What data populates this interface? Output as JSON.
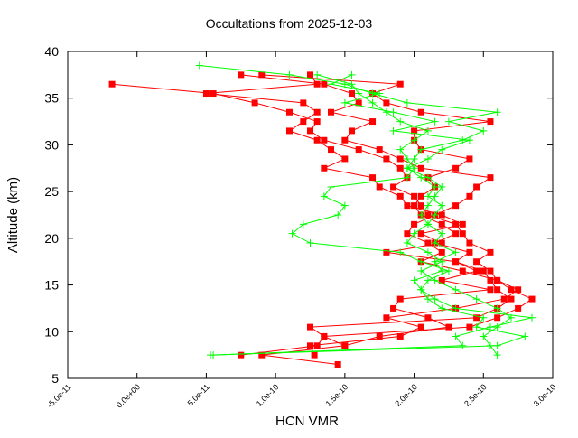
{
  "chart_data": {
    "type": "line",
    "title": "Occultations from 2025-12-03",
    "xlabel": "HCN VMR",
    "ylabel": "Altitude (km)",
    "xlim": [
      -5e-11,
      3e-10
    ],
    "ylim": [
      5,
      40
    ],
    "xticks": [
      -5e-11,
      0,
      5e-11,
      1e-10,
      1.5e-10,
      2e-10,
      2.5e-10,
      3e-10
    ],
    "xtick_labels": [
      "-5.0e-11",
      "0.0e+00",
      "5.0e-11",
      "1.0e-10",
      "1.5e-10",
      "2.0e-10",
      "2.5e-10",
      "3.0e-10"
    ],
    "yticks": [
      5,
      10,
      15,
      20,
      25,
      30,
      35,
      40
    ],
    "ytick_labels": [
      "5",
      "10",
      "15",
      "20",
      "25",
      "30",
      "35",
      "40"
    ],
    "grid": false,
    "colors": {
      "red_series": "#ff0000",
      "green_series": "#00ff00"
    },
    "series": [
      {
        "marker": "square",
        "color": "#ff0000",
        "profiles": [
          [
            [
              -1.8e-11,
              36.5
            ],
            [
              5.5e-11,
              35.5
            ],
            [
              8.5e-11,
              34.5
            ],
            [
              1.1e-10,
              33.5
            ],
            [
              1.3e-10,
              32.5
            ],
            [
              1.25e-10,
              31.5
            ],
            [
              1.35e-10,
              30.5
            ],
            [
              1.6e-10,
              29.5
            ],
            [
              1.8e-10,
              28.5
            ],
            [
              1.9e-10,
              27.5
            ],
            [
              1.95e-10,
              26.5
            ],
            [
              1.85e-10,
              25.5
            ],
            [
              2e-10,
              24.5
            ],
            [
              2.05e-10,
              23.5
            ],
            [
              2.1e-10,
              22.5
            ],
            [
              2.3e-10,
              21.5
            ],
            [
              2.35e-10,
              20.5
            ],
            [
              2.4e-10,
              19.5
            ],
            [
              2.55e-10,
              18.5
            ],
            [
              2.45e-10,
              17.5
            ],
            [
              2.55e-10,
              16.5
            ],
            [
              2.6e-10,
              15.5
            ],
            [
              2.7e-10,
              14.5
            ],
            [
              2.85e-10,
              13.5
            ],
            [
              2.75e-10,
              12.5
            ],
            [
              2.6e-10,
              11.5
            ],
            [
              2.4e-10,
              10.5
            ],
            [
              1.35e-10,
              9.5
            ],
            [
              1.3e-10,
              8.5
            ],
            [
              7.5e-11,
              7.5
            ]
          ],
          [
            [
              1.25e-10,
              37.5
            ],
            [
              1.3e-10,
              36.5
            ],
            [
              5e-11,
              35.5
            ],
            [
              1.2e-10,
              34.5
            ],
            [
              1.3e-10,
              33.5
            ],
            [
              1.2e-10,
              32.5
            ],
            [
              1.1e-10,
              31.5
            ],
            [
              1.3e-10,
              30.5
            ],
            [
              1.4e-10,
              29.5
            ],
            [
              1.5e-10,
              28.5
            ],
            [
              1.35e-10,
              27.5
            ],
            [
              1.7e-10,
              26.5
            ],
            [
              1.75e-10,
              25.5
            ],
            [
              1.9e-10,
              24.5
            ],
            [
              1.95e-10,
              23.5
            ],
            [
              2.2e-10,
              22.5
            ],
            [
              2.35e-10,
              21.5
            ],
            [
              2.05e-10,
              20.5
            ],
            [
              2.2e-10,
              19.5
            ],
            [
              1.8e-10,
              18.5
            ],
            [
              2.3e-10,
              17.5
            ],
            [
              2.5e-10,
              16.5
            ],
            [
              2.55e-10,
              15.5
            ],
            [
              2.6e-10,
              14.5
            ],
            [
              2.7e-10,
              13.5
            ],
            [
              2.6e-10,
              12.5
            ],
            [
              2.45e-10,
              11.5
            ],
            [
              1.25e-10,
              10.5
            ],
            [
              1.35e-10,
              9.5
            ],
            [
              1.5e-10,
              8.5
            ],
            [
              9e-11,
              7.5
            ],
            [
              1.45e-10,
              6.5
            ]
          ],
          [
            [
              7.5e-11,
              37.5
            ],
            [
              1.35e-10,
              36.5
            ],
            [
              1.55e-10,
              35.5
            ],
            [
              1.6e-10,
              34.5
            ],
            [
              1.4e-10,
              33.5
            ],
            [
              1.7e-10,
              32.5
            ],
            [
              1.55e-10,
              31.5
            ],
            [
              1.5e-10,
              30.5
            ],
            [
              1.75e-10,
              29.5
            ],
            [
              1.9e-10,
              28.5
            ],
            [
              2.05e-10,
              27.5
            ],
            [
              2.55e-10,
              26.5
            ],
            [
              2.45e-10,
              25.5
            ],
            [
              2.4e-10,
              24.5
            ],
            [
              2.3e-10,
              23.5
            ],
            [
              2.15e-10,
              22.5
            ],
            [
              2e-10,
              21.5
            ],
            [
              1.95e-10,
              20.5
            ],
            [
              2.1e-10,
              19.5
            ],
            [
              2.2e-10,
              18.5
            ],
            [
              2.05e-10,
              17.5
            ],
            [
              2.35e-10,
              16.5
            ],
            [
              2.6e-10,
              15.5
            ],
            [
              2.75e-10,
              14.5
            ],
            [
              2.65e-10,
              13.5
            ],
            [
              2.3e-10,
              12.5
            ],
            [
              1.8e-10,
              11.5
            ],
            [
              2.05e-10,
              10.5
            ],
            [
              1.9e-10,
              9.5
            ],
            [
              1.25e-10,
              8.5
            ],
            [
              1.28e-10,
              7.5
            ]
          ],
          [
            [
              9e-11,
              37.5
            ],
            [
              1.9e-10,
              36.5
            ],
            [
              1.7e-10,
              35.5
            ],
            [
              1.8e-10,
              34.5
            ],
            [
              2.05e-10,
              33.5
            ],
            [
              2.55e-10,
              32.5
            ],
            [
              2e-10,
              31.5
            ],
            [
              2e-10,
              30.5
            ],
            [
              2.05e-10,
              29.5
            ],
            [
              2.4e-10,
              28.5
            ],
            [
              2.3e-10,
              27.5
            ],
            [
              2.1e-10,
              26.5
            ],
            [
              2.15e-10,
              25.5
            ],
            [
              2.05e-10,
              24.5
            ],
            [
              2e-10,
              23.5
            ],
            [
              2.05e-10,
              22.5
            ],
            [
              2.2e-10,
              21.5
            ],
            [
              2.3e-10,
              20.5
            ],
            [
              2.15e-10,
              19.5
            ],
            [
              2.4e-10,
              18.5
            ],
            [
              2.3e-10,
              17.5
            ],
            [
              2.45e-10,
              16.5
            ],
            [
              2.2e-10,
              15.5
            ],
            [
              2.55e-10,
              14.5
            ],
            [
              1.9e-10,
              13.5
            ],
            [
              1.85e-10,
              12.5
            ],
            [
              2.1e-10,
              11.5
            ],
            [
              2.25e-10,
              10.5
            ],
            [
              1.75e-10,
              9.5
            ],
            [
              1.5e-10,
              8.5
            ]
          ]
        ]
      },
      {
        "marker": "plus",
        "color": "#00ff00",
        "profiles": [
          [
            [
              4.5e-11,
              38.5
            ],
            [
              1.1e-10,
              37.5
            ],
            [
              1.5e-10,
              36.5
            ],
            [
              1.7e-10,
              35.5
            ],
            [
              1.95e-10,
              34.5
            ],
            [
              2.6e-10,
              33.5
            ],
            [
              2.25e-10,
              32.5
            ],
            [
              2.5e-10,
              31.5
            ],
            [
              2.35e-10,
              30.5
            ],
            [
              2.05e-10,
              29.5
            ],
            [
              2e-10,
              28.5
            ],
            [
              1.95e-10,
              27.5
            ],
            [
              2.1e-10,
              26.5
            ],
            [
              2.2e-10,
              25.5
            ],
            [
              2.15e-10,
              24.5
            ],
            [
              2.1e-10,
              23.5
            ],
            [
              2.05e-10,
              22.5
            ],
            [
              2.1e-10,
              21.5
            ],
            [
              2.2e-10,
              20.5
            ],
            [
              2.15e-10,
              19.5
            ],
            [
              2.3e-10,
              18.5
            ],
            [
              2.15e-10,
              17.5
            ],
            [
              2.2e-10,
              16.5
            ],
            [
              2e-10,
              15.5
            ],
            [
              2.05e-10,
              14.5
            ],
            [
              2.1e-10,
              13.5
            ],
            [
              2.2e-10,
              12.5
            ],
            [
              2.5e-10,
              11.5
            ],
            [
              2.45e-10,
              10.5
            ],
            [
              2.8e-10,
              9.5
            ],
            [
              2.6e-10,
              8.5
            ],
            [
              5.5e-11,
              7.5
            ]
          ],
          [
            [
              1.3e-10,
              37.5
            ],
            [
              1.55e-10,
              36.5
            ],
            [
              1.6e-10,
              35.5
            ],
            [
              1.7e-10,
              34.5
            ],
            [
              1.8e-10,
              33.5
            ],
            [
              1.9e-10,
              32.5
            ],
            [
              2.1e-10,
              31.5
            ],
            [
              2e-10,
              30.5
            ],
            [
              1.9e-10,
              29.5
            ],
            [
              1.95e-10,
              28.5
            ],
            [
              2e-10,
              27.5
            ],
            [
              1.95e-10,
              26.5
            ],
            [
              1.4e-10,
              25.5
            ],
            [
              1.35e-10,
              24.5
            ],
            [
              1.5e-10,
              23.5
            ],
            [
              1.45e-10,
              22.5
            ],
            [
              1.2e-10,
              21.5
            ],
            [
              1.12e-10,
              20.5
            ],
            [
              1.25e-10,
              19.5
            ],
            [
              1.9e-10,
              18.5
            ],
            [
              2.05e-10,
              17.5
            ],
            [
              2.25e-10,
              16.5
            ],
            [
              2.1e-10,
              15.5
            ],
            [
              2.05e-10,
              14.5
            ],
            [
              2.15e-10,
              13.5
            ],
            [
              2.3e-10,
              12.5
            ],
            [
              2.85e-10,
              11.5
            ],
            [
              2.55e-10,
              10.5
            ],
            [
              2.3e-10,
              9.5
            ],
            [
              2.35e-10,
              8.5
            ],
            [
              5.3e-11,
              7.5
            ]
          ],
          [
            [
              1.55e-10,
              37.5
            ],
            [
              1.4e-10,
              36.5
            ],
            [
              1.75e-10,
              35.5
            ],
            [
              1.5e-10,
              34.5
            ],
            [
              1.85e-10,
              33.5
            ],
            [
              2.15e-10,
              32.5
            ],
            [
              1.85e-10,
              31.5
            ],
            [
              2.4e-10,
              30.5
            ],
            [
              2.2e-10,
              29.5
            ],
            [
              2.1e-10,
              28.5
            ],
            [
              1.95e-10,
              27.5
            ],
            [
              2.05e-10,
              26.5
            ],
            [
              2.15e-10,
              25.5
            ],
            [
              2.1e-10,
              24.5
            ],
            [
              2.2e-10,
              23.5
            ],
            [
              2.15e-10,
              22.5
            ],
            [
              2.1e-10,
              21.5
            ],
            [
              2e-10,
              20.5
            ],
            [
              1.95e-10,
              19.5
            ],
            [
              2.1e-10,
              18.5
            ],
            [
              2.2e-10,
              17.5
            ],
            [
              2.05e-10,
              16.5
            ],
            [
              2.15e-10,
              15.5
            ],
            [
              2.3e-10,
              14.5
            ],
            [
              2.45e-10,
              13.5
            ],
            [
              2.6e-10,
              12.5
            ],
            [
              2.7e-10,
              11.5
            ],
            [
              2.6e-10,
              10.5
            ],
            [
              2.5e-10,
              9.5
            ],
            [
              2.55e-10,
              8.5
            ],
            [
              2.6e-10,
              7.5
            ]
          ]
        ]
      }
    ]
  }
}
